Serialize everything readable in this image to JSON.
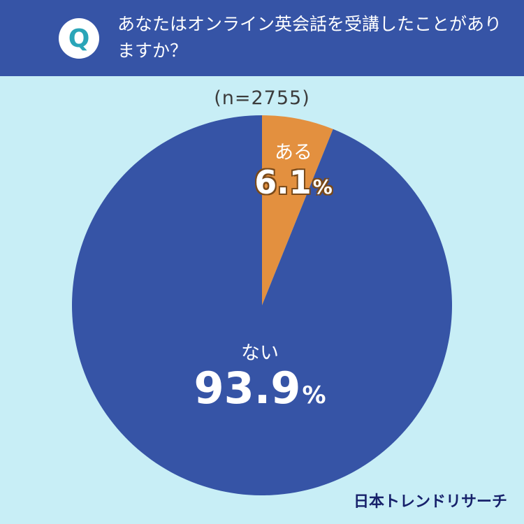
{
  "header": {
    "badge": "Q",
    "question": "あなたはオンライン英会話を受講したことがありますか？"
  },
  "sample": "(n=2755)",
  "labels": {
    "yes_name": "ある",
    "yes_value": "6.1",
    "no_name": "ない",
    "no_value": "93.9",
    "pct_sign": "%"
  },
  "credit": "日本トレンドリサーチ",
  "colors": {
    "header_bg": "#3654a6",
    "page_bg": "#c8eef6",
    "yes": "#e3903f",
    "no": "#3654a6"
  },
  "chart_data": {
    "type": "pie",
    "title": "",
    "slices": [
      {
        "label": "ある",
        "value": 6.1,
        "color": "#e3903f"
      },
      {
        "label": "ない",
        "value": 93.9,
        "color": "#3654a6"
      }
    ]
  }
}
